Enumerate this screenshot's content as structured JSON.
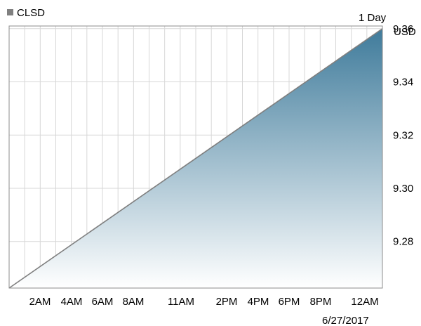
{
  "chart_data": {
    "type": "area",
    "legend": {
      "label": "CLSD",
      "placement": "top-left",
      "marker_color": "#808080"
    },
    "range_label": "1 Day",
    "currency_label": "USD",
    "date_label": "6/27/2017",
    "x_ticks": [
      "2AM",
      "4AM",
      "6AM",
      "8AM",
      "11AM",
      "2PM",
      "4PM",
      "6PM",
      "8PM",
      "12AM"
    ],
    "y_ticks": [
      "9.28",
      "9.30",
      "9.32",
      "9.34",
      "9.36"
    ],
    "ylim": [
      9.2625,
      9.361
    ],
    "series": [
      {
        "x": [
          0,
          1
        ],
        "values": [
          9.2625,
          9.36
        ]
      }
    ],
    "grid": true,
    "colors": {
      "fill_top": "#3f7b9b",
      "fill_bottom": "#ffffff",
      "line": "#7f7f7f",
      "grid": "#d7d7d7"
    }
  }
}
